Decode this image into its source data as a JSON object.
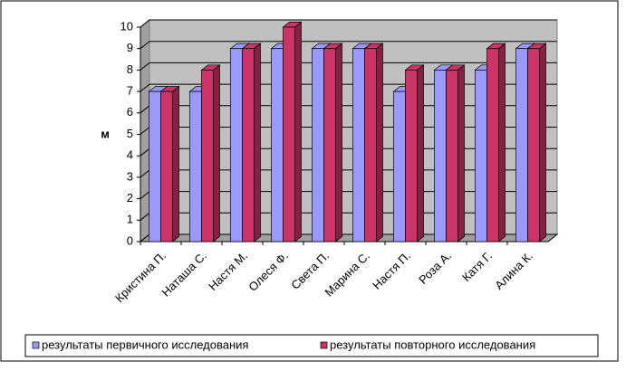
{
  "chart_data": {
    "type": "bar3d",
    "y_label": "м",
    "categories": [
      "Кристина П.",
      "Наташа С.",
      "Настя М.",
      "Олеся Ф.",
      "Света П.",
      "Марина С.",
      "Настя П.",
      "Роза А.",
      "Катя Г.",
      "Алина К."
    ],
    "series": [
      {
        "name": "результаты первичного исследования",
        "color": "#9999ff",
        "values": [
          7,
          7,
          9,
          9,
          9,
          9,
          7,
          8,
          8,
          9
        ]
      },
      {
        "name": "результаты повторного исследования",
        "color": "#cc3366",
        "values": [
          7,
          8,
          9,
          10,
          9,
          9,
          8,
          8,
          9,
          9
        ]
      }
    ],
    "ylim": [
      0,
      10
    ],
    "yticks": [
      0,
      1,
      2,
      3,
      4,
      5,
      6,
      7,
      8,
      9,
      10
    ],
    "grid": true,
    "legend": "bottom"
  }
}
